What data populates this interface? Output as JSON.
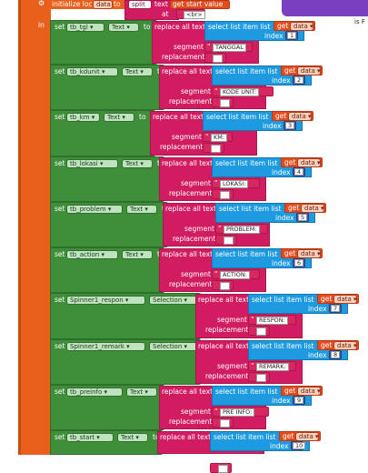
{
  "top": {
    "gear": "⚙",
    "initialize_label": "initialize loca",
    "var_name": "data",
    "to_label": "to",
    "split_label": "split",
    "text_label": "text",
    "get_label": "get",
    "start_value": "start value",
    "at_label": "at",
    "at_value": "<br>",
    "in_label": "in",
    "corner_text": "is F"
  },
  "common": {
    "set_label": "set",
    "to_label": "to",
    "replace_all_text": "replace all text",
    "segment_label": "segment",
    "replacement_label": "replacement",
    "select_list_item": "select list item  list",
    "index_label": "index",
    "get_label": "get",
    "get_var": "data"
  },
  "blocks": [
    {
      "component": "tb_tgl",
      "property": "Text",
      "segment": "TANGGAL",
      "index": "1"
    },
    {
      "component": "tb_kdunit",
      "property": "Text",
      "segment": "KODE UNIT:",
      "index": "2"
    },
    {
      "component": "tb_km",
      "property": "Text",
      "segment": "KM:",
      "index": "3"
    },
    {
      "component": "tb_lokasi",
      "property": "Text",
      "segment": "LOKASI:",
      "index": "4"
    },
    {
      "component": "tb_problem",
      "property": "Text",
      "segment": "PROBLEM:",
      "index": "5"
    },
    {
      "component": "tb_action",
      "property": "Text",
      "segment": "ACTION:",
      "index": "6"
    },
    {
      "component": "Spinner1_respon",
      "property": "Selection",
      "segment": "RESPON:",
      "index": "7"
    },
    {
      "component": "Spinner1_remark",
      "property": "Selection",
      "segment": "REMARK:",
      "index": "8"
    },
    {
      "component": "tb_preinfo",
      "property": "Text",
      "segment": "PRE INFO:",
      "index": "9"
    },
    {
      "component": "tb_start",
      "property": "Text",
      "segment": "",
      "index": "10"
    }
  ]
}
